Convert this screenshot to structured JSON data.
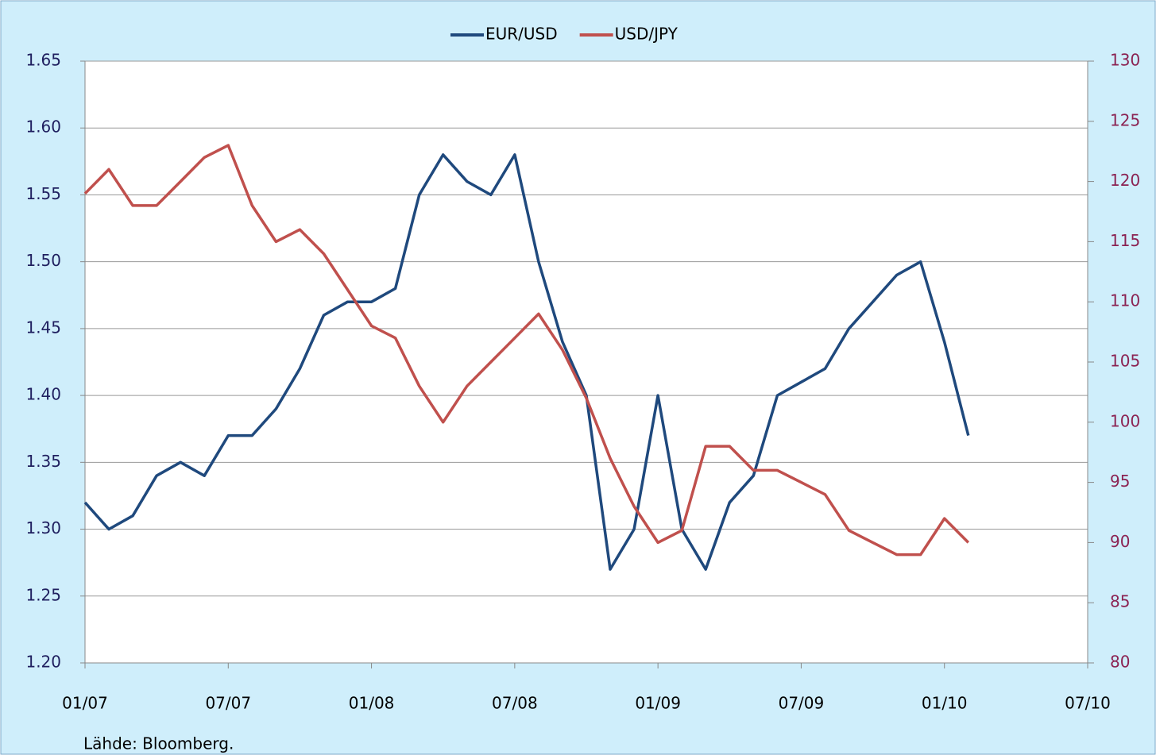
{
  "chart_data": {
    "type": "line",
    "source": "Lähde: Bloomberg.",
    "x": [
      "01/07",
      "02/07",
      "03/07",
      "04/07",
      "05/07",
      "06/07",
      "07/07",
      "08/07",
      "09/07",
      "10/07",
      "11/07",
      "12/07",
      "01/08",
      "02/08",
      "03/08",
      "04/08",
      "05/08",
      "06/08",
      "07/08",
      "08/08",
      "09/08",
      "10/08",
      "11/08",
      "12/08",
      "01/09",
      "02/09",
      "03/09",
      "04/09",
      "05/09",
      "06/09",
      "07/09",
      "08/09",
      "09/09",
      "10/09",
      "11/09",
      "12/09",
      "01/10",
      "02/10"
    ],
    "series": [
      {
        "name": "EUR/USD",
        "color": "#1f497d",
        "axis": "y",
        "values": [
          1.32,
          1.3,
          1.31,
          1.34,
          1.35,
          1.34,
          1.37,
          1.37,
          1.39,
          1.42,
          1.46,
          1.47,
          1.47,
          1.48,
          1.55,
          1.58,
          1.56,
          1.55,
          1.58,
          1.5,
          1.44,
          1.4,
          1.27,
          1.3,
          1.4,
          1.3,
          1.27,
          1.32,
          1.34,
          1.4,
          1.41,
          1.42,
          1.45,
          1.47,
          1.49,
          1.5,
          1.44,
          1.37
        ]
      },
      {
        "name": "USD/JPY",
        "color": "#c0504d",
        "axis": "y2",
        "values": [
          119,
          121,
          118,
          118,
          120,
          122,
          123,
          118,
          115,
          116,
          114,
          111,
          108,
          107,
          103,
          100,
          103,
          105,
          107,
          109,
          106,
          102,
          97,
          93,
          90,
          91,
          98,
          98,
          96,
          96,
          95,
          94,
          91,
          90,
          89,
          89,
          92,
          90
        ]
      }
    ],
    "xlim": [
      "01/07",
      "07/10"
    ],
    "xticks": [
      "01/07",
      "07/07",
      "01/08",
      "07/08",
      "01/09",
      "07/09",
      "01/10",
      "07/10"
    ],
    "ylim": [
      1.2,
      1.65
    ],
    "yticks": [
      {
        "value": 1.2,
        "label": "1.20"
      },
      1.25,
      {
        "value": 1.3,
        "label": "1.30"
      },
      1.35,
      {
        "value": 1.4,
        "label": "1.40"
      },
      1.45,
      {
        "value": 1.5,
        "label": "1.50"
      },
      1.55,
      {
        "value": 1.6,
        "label": "1.60"
      },
      1.65
    ],
    "y2lim": [
      80,
      130
    ],
    "y2ticks": [
      80,
      85,
      90,
      95,
      100,
      105,
      110,
      115,
      120,
      125,
      130
    ],
    "y2color": "#8b2252",
    "grid": true,
    "legend": "top"
  }
}
